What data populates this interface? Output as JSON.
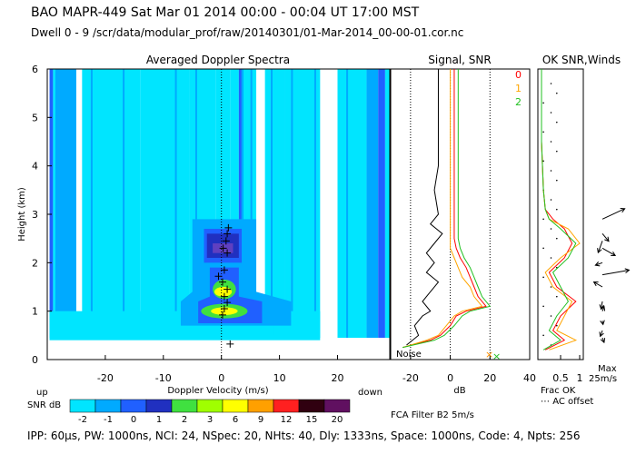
{
  "header": {
    "line1": "BAO  MAPR-449  Sat Mar 01 2014 00:00 - 00:04 UT 17:00 MST",
    "line2": "Dwell  0 - 9   /scr/data/modular_prof/raw/20140301/01-Mar-2014_00-00-01.cor.nc"
  },
  "footer": {
    "text": "IPP: 60μs,  PW: 1000ns,  NCI: 24,  NSpec: 20,  NHts: 40,  Dly: 1333ns,  Space: 1000ns,  Code: 4,  Npts: 256"
  },
  "colors": {
    "cyan": "#00e5ff",
    "light_blue": "#00aaff",
    "blue": "#2060ff",
    "dark_blue": "#2030c0",
    "purple": "#6040c0",
    "green": "#40e040",
    "yellow": "#ffff00",
    "orange": "#ffa000",
    "red": "#ff2020"
  },
  "chart_data": [
    {
      "type": "heatmap",
      "title": "Averaged Doppler Spectra",
      "xlabel": "Doppler Velocity (m/s)",
      "ylabel": "Height (km)",
      "xlim": [
        -30,
        29
      ],
      "ylim": [
        0,
        6
      ],
      "xticks": [
        "-20",
        "-10",
        "0",
        "10",
        "20"
      ],
      "yticks": [
        "0",
        "1",
        "2",
        "3",
        "4",
        "5",
        "6"
      ],
      "label_up": "up",
      "label_down": "down",
      "colorbar": {
        "label": "SNR dB",
        "ticks": [
          "-2",
          "-1",
          "0",
          "1",
          "2",
          "3",
          "6",
          "9",
          "12",
          "15",
          "20"
        ],
        "colors": [
          "#00e5ff",
          "#00aaff",
          "#2060ff",
          "#2030c0",
          "#40e040",
          "#a0ff00",
          "#ffff00",
          "#ffa000",
          "#ff2020",
          "#300010",
          "#601060"
        ]
      },
      "peak_heights_km": [
        0.32,
        0.92,
        1.05,
        1.18,
        1.3,
        1.45,
        1.6,
        1.72,
        1.85,
        2.2,
        2.3,
        2.45,
        2.6,
        2.72
      ],
      "peak_velocities": [
        1.5,
        0.2,
        0.5,
        1.0,
        0.5,
        1.0,
        0.2,
        -0.5,
        0.5,
        1.0,
        0.3,
        0.8,
        1.0,
        1.2
      ]
    },
    {
      "type": "line",
      "title": "Signal, SNR",
      "xlabel": "dB",
      "xlim": [
        -30,
        40
      ],
      "ylim": [
        0,
        6
      ],
      "xticks": [
        "-20",
        "0",
        "20",
        "40"
      ],
      "noise_label": "Noise",
      "series": [
        {
          "name": "0",
          "color": "#ff0000",
          "x": [
            -24,
            -10,
            -5,
            0,
            3,
            8,
            18,
            14,
            12,
            10,
            8,
            5,
            3,
            2,
            2,
            2,
            2,
            2,
            2,
            2,
            2,
            2,
            2,
            2,
            2
          ],
          "y": [
            0.25,
            0.4,
            0.5,
            0.7,
            0.9,
            1.0,
            1.1,
            1.3,
            1.5,
            1.7,
            1.9,
            2.1,
            2.3,
            2.5,
            2.7,
            3.0,
            3.5,
            4.0,
            4.5,
            5.0,
            5.5,
            5.8,
            6.0,
            6.0,
            6.0
          ]
        },
        {
          "name": "1",
          "color": "#ffa500",
          "x": [
            -24,
            -12,
            -6,
            -2,
            2,
            6,
            16,
            12,
            10,
            6,
            4,
            2,
            0,
            0,
            0,
            0,
            0,
            0,
            0,
            0,
            0,
            0,
            0,
            0,
            0
          ],
          "y": [
            0.25,
            0.4,
            0.5,
            0.7,
            0.9,
            1.0,
            1.1,
            1.3,
            1.5,
            1.7,
            1.9,
            2.1,
            2.3,
            2.5,
            2.7,
            3.0,
            3.5,
            4.0,
            4.5,
            5.0,
            5.5,
            5.8,
            6.0,
            6.0,
            6.0
          ]
        },
        {
          "name": "2",
          "color": "#20c020",
          "x": [
            -24,
            -8,
            -3,
            2,
            6,
            10,
            20,
            16,
            14,
            12,
            10,
            7,
            5,
            4,
            4,
            4,
            4,
            4,
            4,
            4,
            4,
            4,
            4,
            4,
            4
          ],
          "y": [
            0.25,
            0.4,
            0.5,
            0.7,
            0.9,
            1.0,
            1.1,
            1.3,
            1.5,
            1.7,
            1.9,
            2.1,
            2.3,
            2.5,
            2.7,
            3.0,
            3.5,
            4.0,
            4.5,
            5.0,
            5.5,
            5.8,
            6.0,
            6.0,
            6.0
          ]
        },
        {
          "name": "noise",
          "color": "#000000",
          "x": [
            -22,
            -16,
            -18,
            -14,
            -10,
            -14,
            -10,
            -6,
            -12,
            -8,
            -12,
            -8,
            -4,
            -10,
            -6,
            -8,
            -6,
            -6,
            -6,
            -6,
            -6,
            -6,
            -6,
            -6,
            -6
          ],
          "y": [
            0.3,
            0.5,
            0.7,
            0.9,
            1.0,
            1.2,
            1.4,
            1.6,
            1.8,
            2.0,
            2.2,
            2.4,
            2.6,
            2.8,
            3.0,
            3.5,
            4.0,
            4.5,
            5.0,
            5.5,
            5.8,
            6.0,
            6.0,
            6.0,
            6.0
          ]
        }
      ]
    },
    {
      "type": "line",
      "title": "OK SNR,Winds",
      "xlabel": "Frac OK",
      "xlim": [
        0,
        1
      ],
      "ylim": [
        0,
        6
      ],
      "xticks": [
        "0.5",
        "1"
      ],
      "note": "AC offset",
      "max_label": "Max",
      "max_value": "25m/s",
      "filter_label": "FCA Filter B2  5m/s",
      "series": [
        {
          "name": "0",
          "color": "#ff0000",
          "x": [
            0.1,
            0.6,
            0.3,
            0.5,
            0.9,
            0.4,
            0.2,
            0.6,
            0.8,
            0.6,
            0.3,
            0.1,
            0.05,
            0.0,
            0.0
          ],
          "y": [
            0.2,
            0.4,
            0.6,
            0.9,
            1.2,
            1.5,
            1.8,
            2.1,
            2.4,
            2.7,
            2.9,
            3.1,
            3.5,
            4.5,
            6.0
          ]
        },
        {
          "name": "1",
          "color": "#ffa500",
          "x": [
            0.2,
            0.9,
            0.4,
            0.6,
            0.8,
            0.3,
            0.1,
            0.5,
            1.0,
            0.7,
            0.2,
            0.1,
            0.05,
            0.0,
            0.0
          ],
          "y": [
            0.2,
            0.4,
            0.6,
            0.9,
            1.2,
            1.5,
            1.8,
            2.1,
            2.4,
            2.7,
            2.9,
            3.1,
            3.5,
            4.5,
            6.0
          ]
        },
        {
          "name": "2",
          "color": "#20c020",
          "x": [
            0.05,
            0.5,
            0.2,
            0.4,
            0.7,
            0.5,
            0.3,
            0.7,
            0.9,
            0.5,
            0.2,
            0.1,
            0.05,
            0.0,
            0.0
          ],
          "y": [
            0.2,
            0.4,
            0.6,
            0.9,
            1.2,
            1.5,
            1.8,
            2.1,
            2.4,
            2.7,
            2.9,
            3.1,
            3.5,
            4.5,
            6.0
          ]
        }
      ],
      "wind_heights_km": [
        2.9,
        2.6,
        2.45,
        2.3,
        2.0,
        1.75,
        1.5,
        1.2,
        1.0,
        0.8,
        0.6,
        0.45
      ],
      "wind_speeds": [
        20,
        8,
        10,
        12,
        6,
        22,
        8,
        6,
        4,
        3,
        5,
        4
      ],
      "wind_dirs_deg": [
        65,
        140,
        200,
        120,
        250,
        80,
        300,
        190,
        20,
        170,
        200,
        160
      ]
    }
  ]
}
